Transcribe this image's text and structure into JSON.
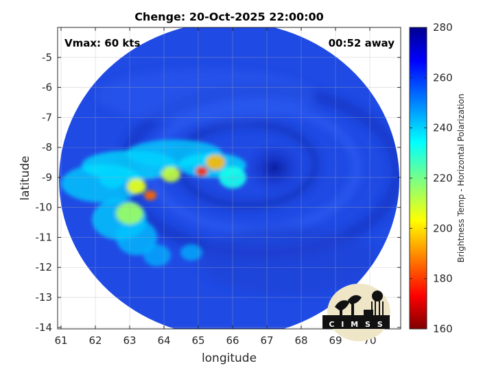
{
  "chart_data": {
    "type": "heatmap",
    "title": "Chenge: 20-Oct-2025 22:00:00",
    "xlabel": "longitude",
    "ylabel": "latitude",
    "xlim": [
      60.9,
      70.9
    ],
    "ylim": [
      -14.05,
      -4.0
    ],
    "x_ticks": [
      61,
      62,
      63,
      64,
      65,
      66,
      67,
      68,
      69,
      70
    ],
    "y_ticks": [
      -5,
      -6,
      -7,
      -8,
      -9,
      -10,
      -11,
      -12,
      -13,
      -14
    ],
    "grid": true,
    "swath_center": [
      66.0,
      -9.1
    ],
    "storm_center": [
      67.3,
      -9.3
    ],
    "annotations": {
      "vmax": "Vmax: 60 kts",
      "time_away": "00:52 away"
    },
    "colorbar": {
      "label": "Brightness Temp - Horizontal Polarization",
      "range": [
        160,
        280
      ],
      "ticks": [
        280,
        260,
        240,
        220,
        200,
        180,
        160
      ],
      "colormap": [
        "#7f0000",
        "#ff0000",
        "#ffff00",
        "#00ffff",
        "#0000ff",
        "#00008f"
      ]
    },
    "values_description_points": [
      {
        "lon": 63.6,
        "lat": -9.6,
        "tb": 185
      },
      {
        "lon": 65.1,
        "lat": -8.8,
        "tb": 178
      },
      {
        "lon": 63.2,
        "lat": -9.3,
        "tb": 205
      },
      {
        "lon": 64.2,
        "lat": -8.9,
        "tb": 210
      },
      {
        "lon": 65.5,
        "lat": -8.5,
        "tb": 195
      },
      {
        "lon": 63.0,
        "lat": -10.2,
        "tb": 215
      },
      {
        "lon": 66.0,
        "lat": -9.0,
        "tb": 232
      },
      {
        "lon": 62.5,
        "lat": -9.0,
        "tb": 240
      },
      {
        "lon": 67.3,
        "lat": -9.3,
        "tb": 268
      },
      {
        "lon": 69.0,
        "lat": -8.0,
        "tb": 258
      }
    ]
  },
  "logo": {
    "text": "C I M S S"
  }
}
